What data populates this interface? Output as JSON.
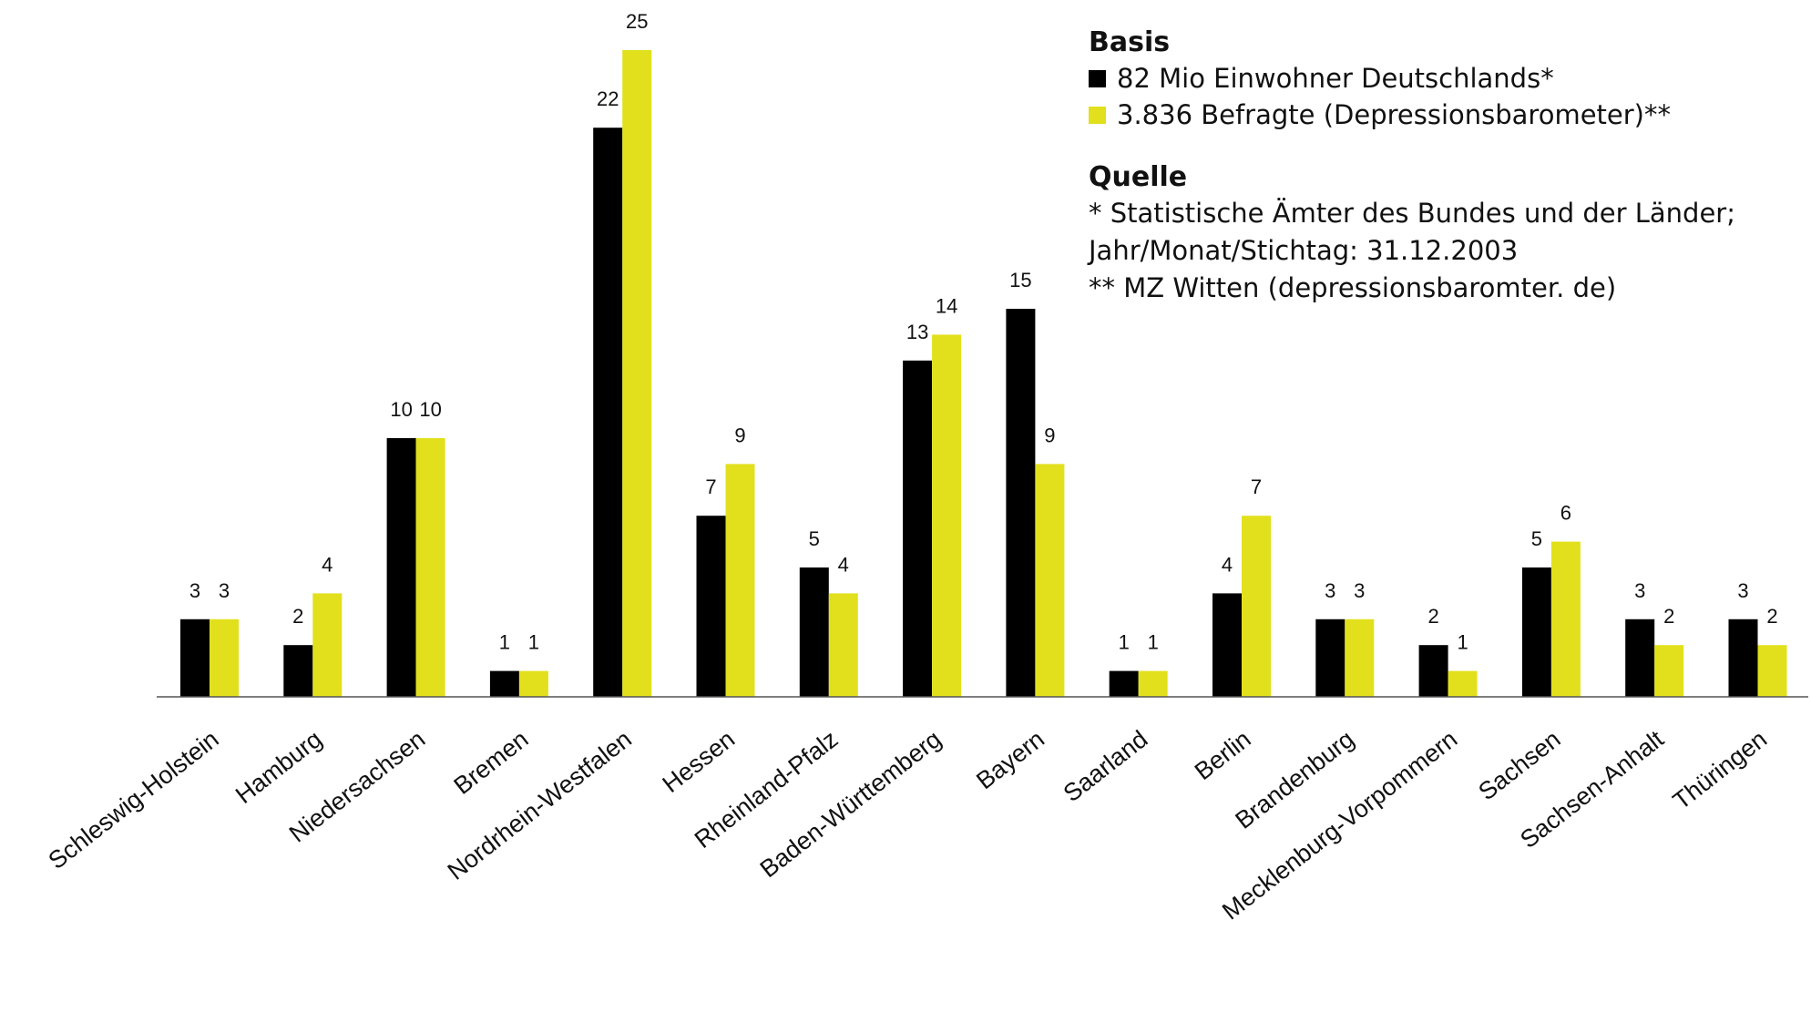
{
  "chart_data": {
    "type": "bar",
    "categories": [
      "Schleswig-Holstein",
      "Hamburg",
      "Niedersachsen",
      "Bremen",
      "Nordrhein-Westfalen",
      "Hessen",
      "Rheinland-Pfalz",
      "Baden-Württemberg",
      "Bayern",
      "Saarland",
      "Berlin",
      "Brandenburg",
      "Mecklenburg-Vorpommern",
      "Sachsen",
      "Sachsen-Anhalt",
      "Thüringen"
    ],
    "series": [
      {
        "name": "82 Mio Einwohner Deutschlands*",
        "color": "#000000",
        "values": [
          3,
          2,
          10,
          1,
          22,
          7,
          5,
          13,
          15,
          1,
          4,
          3,
          2,
          5,
          3,
          3
        ]
      },
      {
        "name": "3.836 Befragte (Depressionsbarometer)**",
        "color": "#e2e01c",
        "values": [
          3,
          4,
          10,
          1,
          25,
          9,
          4,
          14,
          9,
          1,
          7,
          3,
          1,
          6,
          2,
          2
        ]
      }
    ],
    "ylim": [
      0,
      26
    ],
    "grid": false,
    "legend_position": "top-right",
    "legend_heading": "Basis",
    "source_heading": "Quelle",
    "source_lines": [
      "* Statistische Ämter des Bundes und der Länder;",
      "Jahr/Monat/Stichtag: 31.12.2003",
      "** MZ Witten (depressionsbaromter. de)"
    ]
  }
}
